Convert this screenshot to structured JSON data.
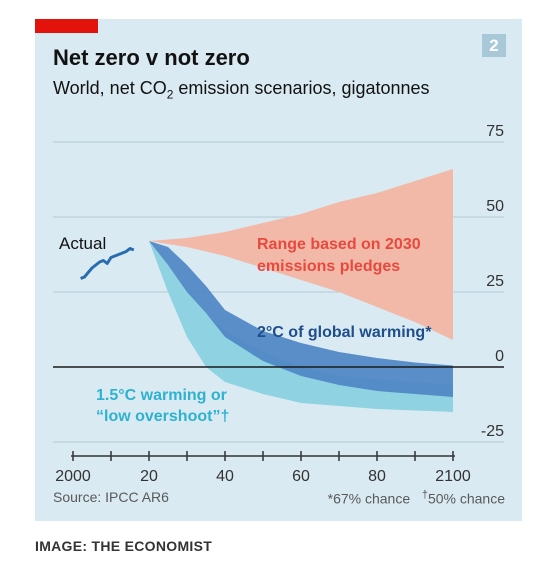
{
  "chart_data": {
    "type": "area",
    "title": "Net zero v not zero",
    "subtitle_pre": "World, net CO",
    "subtitle_sub": "2",
    "subtitle_post": " emission scenarios, gigatonnes",
    "badge": "2",
    "xlim": [
      1998,
      2102
    ],
    "ylim": [
      -25,
      75
    ],
    "x_ticks": [
      2000,
      2010,
      2020,
      2030,
      2040,
      2050,
      2060,
      2070,
      2080,
      2090,
      2100
    ],
    "x_tick_labels": [
      {
        "x": 2000,
        "label": "2000"
      },
      {
        "x": 2020,
        "label": "20"
      },
      {
        "x": 2040,
        "label": "40"
      },
      {
        "x": 2060,
        "label": "60"
      },
      {
        "x": 2080,
        "label": "80"
      },
      {
        "x": 2100,
        "label": "2100"
      }
    ],
    "y_ticks": [
      {
        "y": 75,
        "label": "75"
      },
      {
        "y": 50,
        "label": "50"
      },
      {
        "y": 25,
        "label": "25"
      },
      {
        "y": 0,
        "label": "0"
      },
      {
        "y": -25,
        "label": "-25"
      }
    ],
    "grid": true,
    "series": [
      {
        "name": "Actual",
        "color": "#2a6cb0",
        "points": [
          [
            2002,
            29.5
          ],
          [
            2003,
            30
          ],
          [
            2004,
            31.5
          ],
          [
            2005,
            33
          ],
          [
            2006,
            34
          ],
          [
            2007,
            35
          ],
          [
            2008,
            35.5
          ],
          [
            2009,
            34.5
          ],
          [
            2010,
            36.5
          ],
          [
            2011,
            37
          ],
          [
            2012,
            37.5
          ],
          [
            2013,
            38
          ],
          [
            2014,
            38.5
          ],
          [
            2015,
            39.5
          ],
          [
            2016,
            39
          ]
        ]
      },
      {
        "name": "Range based on 2030 emissions pledges",
        "color": "#f2b9a8",
        "label_color": "#e8493f",
        "upper": [
          [
            2020,
            42
          ],
          [
            2030,
            43
          ],
          [
            2040,
            45
          ],
          [
            2050,
            48
          ],
          [
            2060,
            51
          ],
          [
            2070,
            55
          ],
          [
            2080,
            58
          ],
          [
            2090,
            62
          ],
          [
            2100,
            66
          ]
        ],
        "lower": [
          [
            2020,
            42
          ],
          [
            2030,
            40
          ],
          [
            2040,
            37
          ],
          [
            2050,
            33
          ],
          [
            2060,
            29
          ],
          [
            2070,
            25
          ],
          [
            2080,
            20
          ],
          [
            2090,
            15
          ],
          [
            2100,
            9
          ]
        ]
      },
      {
        "name": "1.5°C warming or “low overshoot”†",
        "color": "#8fd3e2",
        "label_color": "#2eb2cf",
        "upper": [
          [
            2020,
            42
          ],
          [
            2025,
            34
          ],
          [
            2030,
            26
          ],
          [
            2035,
            18
          ],
          [
            2040,
            12
          ],
          [
            2050,
            5
          ],
          [
            2060,
            0
          ],
          [
            2070,
            -3
          ],
          [
            2080,
            -4
          ],
          [
            2090,
            -5
          ],
          [
            2100,
            -6
          ]
        ],
        "lower": [
          [
            2020,
            42
          ],
          [
            2025,
            25
          ],
          [
            2030,
            10
          ],
          [
            2035,
            0
          ],
          [
            2040,
            -5
          ],
          [
            2050,
            -9
          ],
          [
            2060,
            -12
          ],
          [
            2070,
            -13
          ],
          [
            2080,
            -14
          ],
          [
            2090,
            -14.5
          ],
          [
            2100,
            -15
          ]
        ]
      },
      {
        "name": "2°C of global warming*",
        "color": "#4f86c6",
        "label_color": "#1f4e8c",
        "upper": [
          [
            2020,
            42
          ],
          [
            2025,
            40
          ],
          [
            2030,
            34
          ],
          [
            2035,
            27
          ],
          [
            2040,
            19
          ],
          [
            2050,
            12
          ],
          [
            2060,
            8
          ],
          [
            2070,
            5
          ],
          [
            2080,
            3
          ],
          [
            2090,
            1.5
          ],
          [
            2100,
            0.5
          ]
        ],
        "lower": [
          [
            2020,
            42
          ],
          [
            2025,
            34
          ],
          [
            2030,
            25
          ],
          [
            2035,
            18
          ],
          [
            2040,
            10
          ],
          [
            2050,
            2
          ],
          [
            2060,
            -3
          ],
          [
            2070,
            -6
          ],
          [
            2080,
            -8
          ],
          [
            2090,
            -9
          ],
          [
            2100,
            -10
          ]
        ]
      }
    ],
    "annotations": {
      "actual": "Actual",
      "pledges_line1": "Range based on 2030",
      "pledges_line2": "emissions pledges",
      "two_deg": "2°C of global warming*",
      "one_five_line1": "1.5°C warming or",
      "one_five_line2": "“low overshoot”†"
    }
  },
  "footer": {
    "source": "Source: IPCC AR6",
    "note1": "*67% chance",
    "note2_mark": "†",
    "note2": "50% chance"
  },
  "credit": "IMAGE: THE ECONOMIST",
  "colors": {
    "panel_bg": "#d9eaf2",
    "brand_red": "#e3120b",
    "grid": "#b4cbd6",
    "zero_line": "#1a1a1a"
  }
}
